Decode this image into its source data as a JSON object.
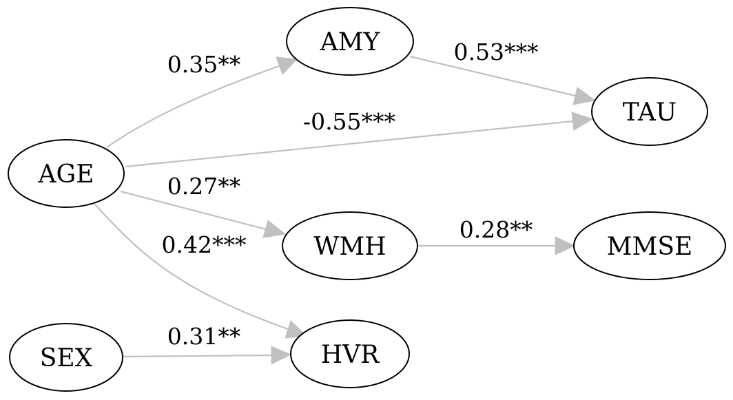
{
  "nodes": {
    "amy": "AMY",
    "tau": "TAU",
    "age": "AGE",
    "wmh": "WMH",
    "mmse": "MMSE",
    "sex": "SEX",
    "hvr": "HVR"
  },
  "edges": {
    "age_amy": "0.35**",
    "amy_tau": "0.53***",
    "age_tau": "-0.55***",
    "age_wmh": "0.27**",
    "wmh_mmse": "0.28**",
    "age_hvr": "0.42***",
    "sex_hvr": "0.31**"
  }
}
